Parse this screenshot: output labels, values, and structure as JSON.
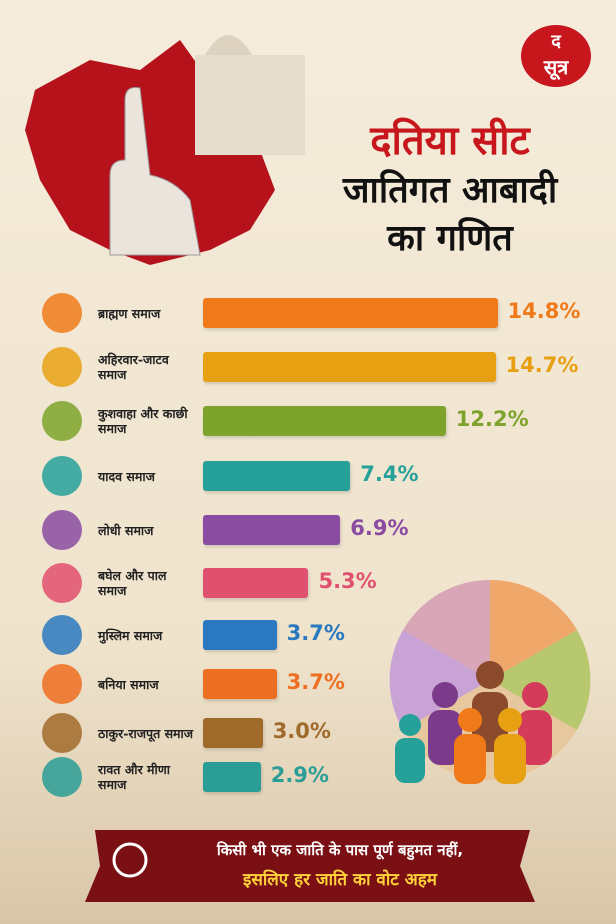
{
  "logo": {
    "top": "द",
    "bottom": "सूत्र"
  },
  "title": {
    "line1": "दतिया सीट",
    "line2": "जातिगत आबादी",
    "line3": "का गणित"
  },
  "chart_data": {
    "type": "bar",
    "orientation": "horizontal",
    "categories": [
      "ब्राह्मण समाज",
      "अहिरवार-जाटव समाज",
      "कुशवाहा और काछी समाज",
      "यादव समाज",
      "लोधी समाज",
      "बघेल और पाल समाज",
      "मुस्लिम समाज",
      "बनिया समाज",
      "ठाकुर-राजपूत समाज",
      "रावत और मीणा समाज"
    ],
    "values": [
      14.8,
      14.7,
      12.2,
      7.4,
      6.9,
      5.3,
      3.7,
      3.7,
      3.0,
      2.9
    ],
    "value_labels": [
      "14.8%",
      "14.7%",
      "12.2%",
      "7.4%",
      "6.9%",
      "5.3%",
      "3.7%",
      "3.7%",
      "3.0%",
      "2.9%"
    ],
    "colors": [
      "#f07a1a",
      "#e8a013",
      "#7ea32b",
      "#26a19a",
      "#8a4ca0",
      "#e0506f",
      "#2a79c0",
      "#ee6f22",
      "#a06a2a",
      "#2a9d97"
    ]
  },
  "footer": {
    "line1": "किसी भी एक जाति के पास पूर्ण बहुमत नहीं,",
    "line2": "इसलिए हर जाति का वोट अहम"
  }
}
